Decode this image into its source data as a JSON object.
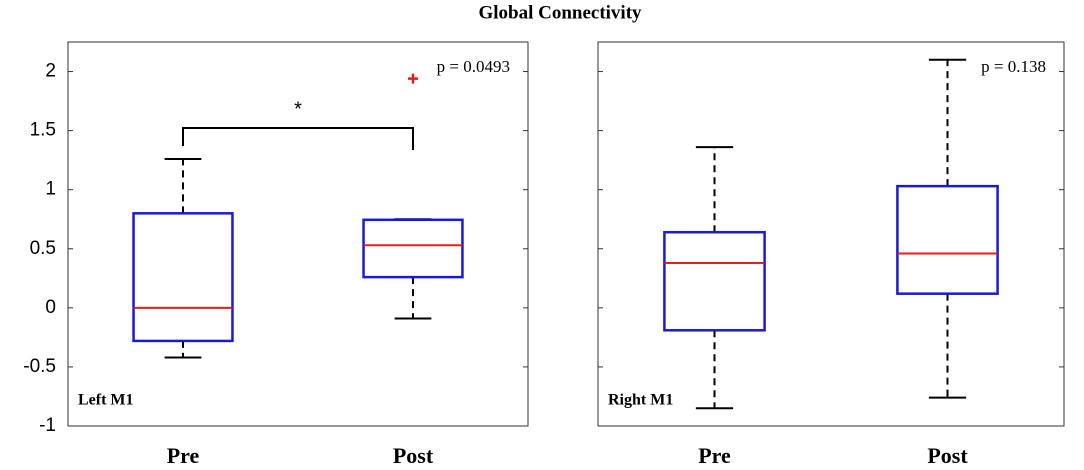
{
  "title": "Global Connectivity",
  "chart_data": [
    {
      "type": "box",
      "panel_label": "Left M1",
      "annotation": "p = 0.0493",
      "significance": "*",
      "categories": [
        "Pre",
        "Post"
      ],
      "boxes": [
        {
          "whislo": -0.42,
          "q1": -0.28,
          "med": 0,
          "q3": 0.8,
          "whishi": 1.26,
          "fliers": []
        },
        {
          "whislo": -0.09,
          "q1": 0.26,
          "med": 0.53,
          "q3": 0.745,
          "whishi": 0.75,
          "fliers": [
            1.94
          ]
        }
      ],
      "box_color": "#1a1ad6",
      "median_color": "#e0201c",
      "whisker_color": "#000000",
      "flier_color": "#e0201c",
      "ylim": [
        -1,
        2.25
      ],
      "yticks": [
        -1,
        -0.5,
        0,
        0.5,
        1,
        1.5,
        2
      ],
      "ytick_labels": true
    },
    {
      "type": "box",
      "panel_label": "Right M1",
      "annotation": "p = 0.138",
      "categories": [
        "Pre",
        "Post"
      ],
      "boxes": [
        {
          "whislo": -0.85,
          "q1": -0.19,
          "med": 0.38,
          "q3": 0.64,
          "whishi": 1.36,
          "fliers": []
        },
        {
          "whislo": -0.76,
          "q1": 0.12,
          "med": 0.46,
          "q3": 1.03,
          "whishi": 2.1,
          "fliers": []
        }
      ],
      "box_color": "#1a1ad6",
      "median_color": "#e0201c",
      "whisker_color": "#000000",
      "flier_color": "#e0201c",
      "ylim": [
        -1,
        2.25
      ],
      "yticks": [
        -1,
        -0.5,
        0,
        0.5,
        1,
        1.5,
        2
      ],
      "ytick_labels": false
    }
  ]
}
